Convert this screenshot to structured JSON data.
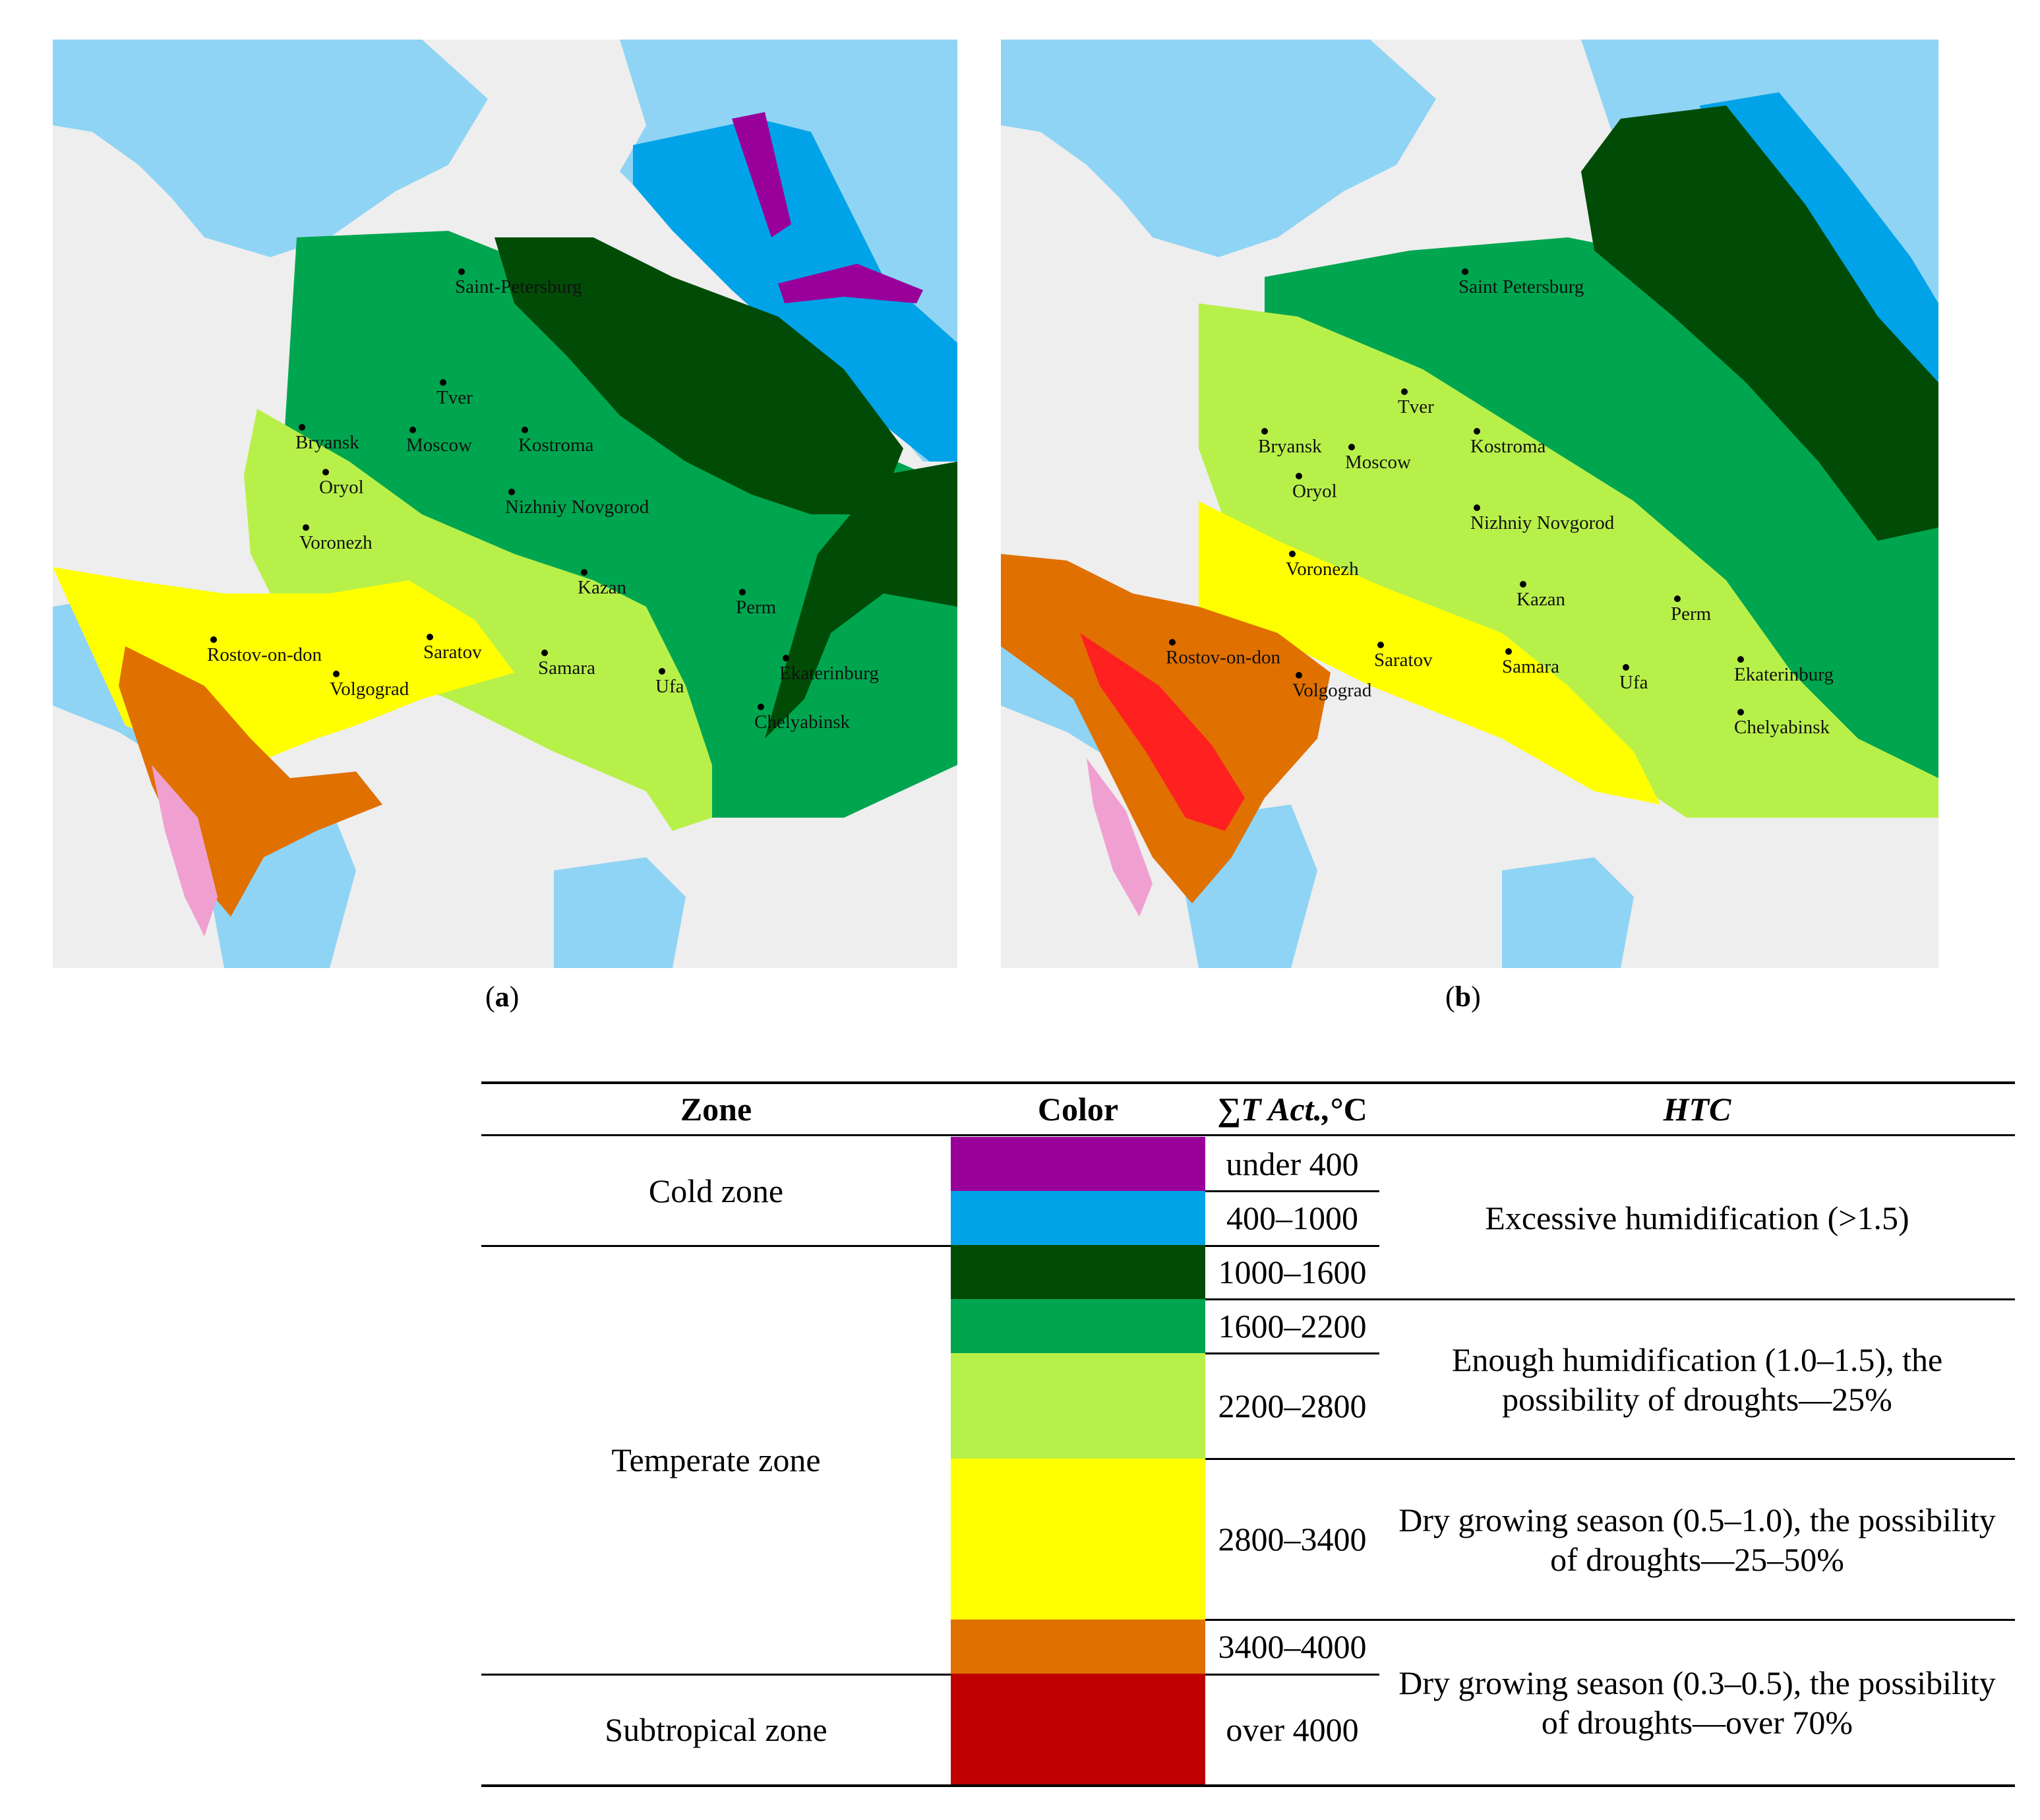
{
  "maps": {
    "a": {
      "caption_letter": "a",
      "cities": [
        {
          "name": "Saint-Petersburg"
        },
        {
          "name": "Tver"
        },
        {
          "name": "Bryansk"
        },
        {
          "name": "Moscow"
        },
        {
          "name": "Kostroma"
        },
        {
          "name": "Oryol"
        },
        {
          "name": "Nizhniy Novgorod"
        },
        {
          "name": "Voronezh"
        },
        {
          "name": "Kazan"
        },
        {
          "name": "Perm"
        },
        {
          "name": "Rostov-on-don"
        },
        {
          "name": "Saratov"
        },
        {
          "name": "Samara"
        },
        {
          "name": "Ufa"
        },
        {
          "name": "Ekaterinburg"
        },
        {
          "name": "Volgograd"
        },
        {
          "name": "Chelyabinsk"
        }
      ]
    },
    "b": {
      "caption_letter": "b",
      "cities": [
        {
          "name": "Saint Petersburg"
        },
        {
          "name": "Tver"
        },
        {
          "name": "Bryansk"
        },
        {
          "name": "Moscow"
        },
        {
          "name": "Kostroma"
        },
        {
          "name": "Oryol"
        },
        {
          "name": "Nizhniy Novgorod"
        },
        {
          "name": "Voronezh"
        },
        {
          "name": "Kazan"
        },
        {
          "name": "Perm"
        },
        {
          "name": "Rostov-on-don"
        },
        {
          "name": "Saratov"
        },
        {
          "name": "Samara"
        },
        {
          "name": "Ufa"
        },
        {
          "name": "Ekaterinburg"
        },
        {
          "name": "Volgograd"
        },
        {
          "name": "Chelyabinsk"
        }
      ]
    }
  },
  "colors": {
    "water": "#8fd4f4",
    "land": "#eeeeee",
    "under_400": "#990099",
    "r400_1000": "#00a3e8",
    "r1000_1600": "#004c06",
    "r1600_2200": "#00a64f",
    "r2200_2800": "#b8f04a",
    "r2800_3400": "#ffff00",
    "r3400_4000": "#e07000",
    "over_4000": "#c00000",
    "map_magenta": "#cc44aa",
    "map_pink": "#f0a0d0",
    "map_red": "#ff2020"
  },
  "legend": {
    "headers": {
      "zone": "Zone",
      "color": "Color",
      "sum_prefix": "∑",
      "sum_italic": "T Act.,",
      "sum_suffix": " °C",
      "htc": "HTC"
    },
    "zones": {
      "cold": "Cold zone",
      "temperate": "Temperate zone",
      "subtropical": "Subtropical zone"
    },
    "ranges": [
      "under 400",
      "400–1000",
      "1000–1600",
      "1600–2200",
      "2200–2800",
      "2800–3400",
      "3400–4000",
      "over 4000"
    ],
    "htc": {
      "excessive": "Excessive humidification (>1.5)",
      "enough": "Enough humidification (1.0–1.5), the possibility of droughts—25%",
      "dry1": "Dry growing season (0.5–1.0), the possibility of droughts—25–50%",
      "dry2": "Dry growing season (0.3–0.5), the possibility of droughts—over 70%"
    }
  }
}
